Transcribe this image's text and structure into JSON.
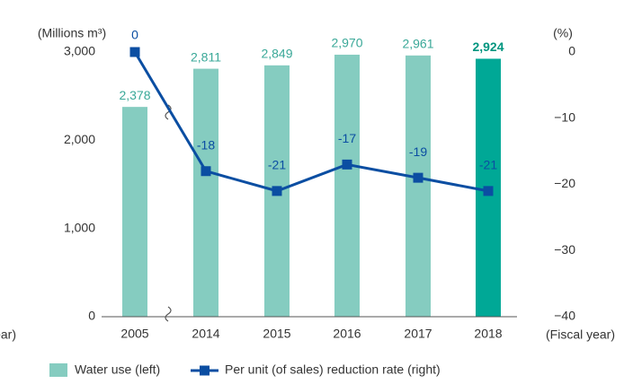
{
  "chart_data": {
    "type": "bar_line",
    "y_label": "(Millions m³)",
    "y2_label": "(%)",
    "x_label": "(Fiscal year)",
    "categories": [
      "2005",
      "2014",
      "2015",
      "2016",
      "2017",
      "2018"
    ],
    "series": [
      {
        "name": "Water use (left)",
        "type": "bar",
        "color": "#85ccc0",
        "colors": [
          "#85ccc0",
          "#85ccc0",
          "#85ccc0",
          "#85ccc0",
          "#85ccc0",
          "#00a896"
        ],
        "values": [
          2378,
          2811,
          2849,
          2970,
          2961,
          2924
        ],
        "value_labels": [
          "2,378",
          "2,811",
          "2,849",
          "2,970",
          "2,961",
          "2,924"
        ]
      },
      {
        "name": "Per unit (of sales) reduction rate (right)",
        "type": "line",
        "axis": "y2",
        "color": "#0b4ea2",
        "values": [
          0,
          -18,
          -21,
          -17,
          -19,
          -21
        ]
      }
    ],
    "ylim": [
      0,
      3000
    ],
    "yticks": [
      0,
      {
        "value": 1000,
        "label": "1,000"
      },
      {
        "value": 2000,
        "label": "2,000"
      },
      {
        "value": 3000,
        "label": "3,000"
      }
    ],
    "y2lim": [
      -40,
      0
    ],
    "y2ticks": [
      {
        "value": -40,
        "label": "−40"
      },
      {
        "value": -30,
        "label": "−30"
      },
      {
        "value": -20,
        "label": "−20"
      },
      {
        "value": -10,
        "label": "−10"
      },
      0
    ]
  }
}
